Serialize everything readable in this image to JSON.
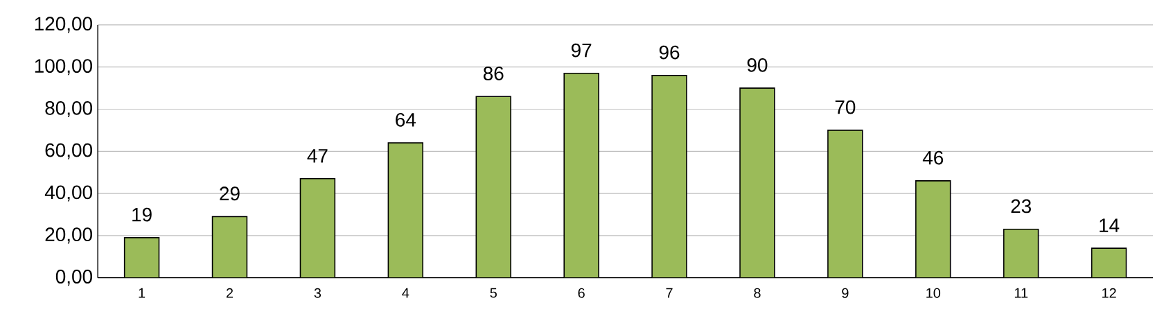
{
  "chart_data": {
    "type": "bar",
    "categories": [
      "1",
      "2",
      "3",
      "4",
      "5",
      "6",
      "7",
      "8",
      "9",
      "10",
      "11",
      "12"
    ],
    "values": [
      19,
      29,
      47,
      64,
      86,
      97,
      96,
      90,
      70,
      46,
      23,
      14
    ],
    "color": "#9bbb59",
    "ylim": [
      0,
      120
    ],
    "yticks": [
      {
        "value": 0,
        "label": "0,00"
      },
      {
        "value": 20,
        "label": "20,00"
      },
      {
        "value": 40,
        "label": "40,00"
      },
      {
        "value": 60,
        "label": "60,00"
      },
      {
        "value": 80,
        "label": "80,00"
      },
      {
        "value": 100,
        "label": "100,00"
      },
      {
        "value": 120,
        "label": "120,00"
      }
    ],
    "grid": "y",
    "data_labels": true
  }
}
